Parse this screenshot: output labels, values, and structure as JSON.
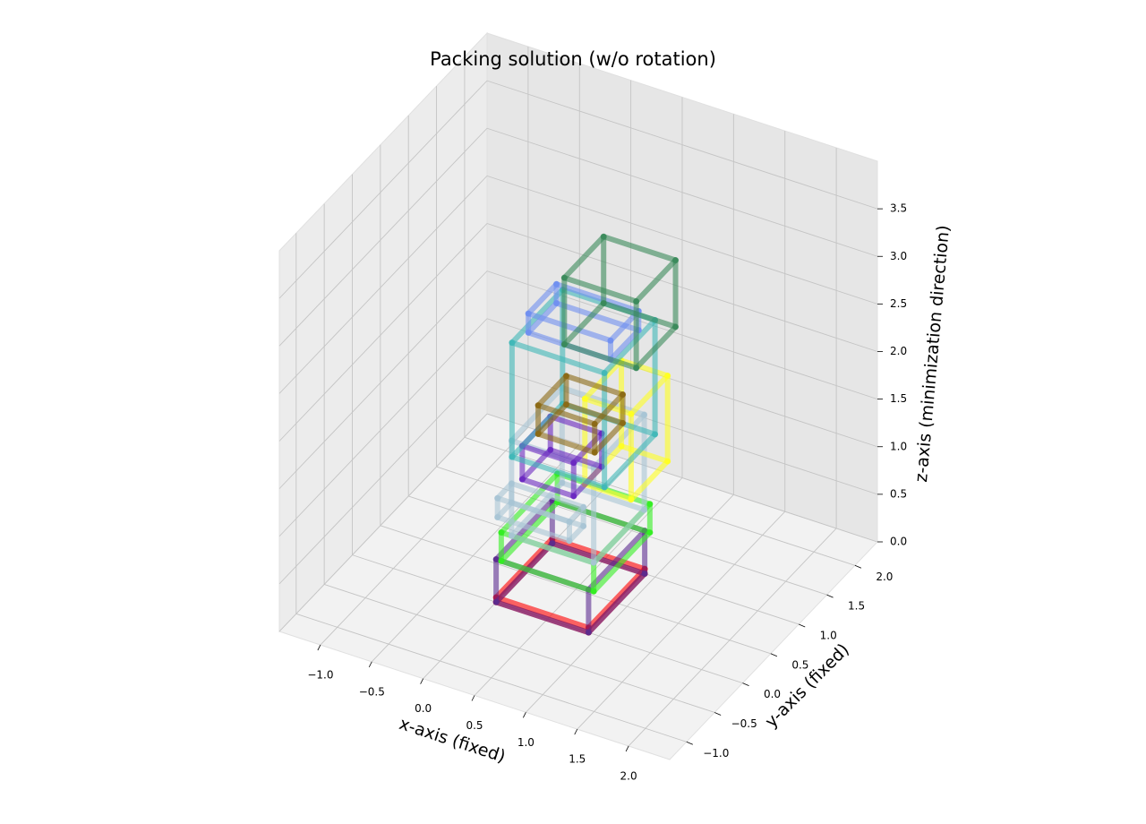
{
  "chart_data": {
    "type": "wireframe-3d",
    "title": "Packing solution (w/o rotation)",
    "x_label": "x-axis (fixed)",
    "y_label": "y-axis (fixed)",
    "z_label": "z-axis (minimization direction)",
    "xlim": [
      -1.4,
      2.4
    ],
    "ylim": [
      -1.3,
      2.4
    ],
    "zlim": [
      0,
      4.0
    ],
    "xticks": [
      {
        "value": -1.0,
        "label": "−1.0"
      },
      {
        "value": -0.5,
        "label": "−0.5"
      },
      {
        "value": 0,
        "label": "0.0"
      },
      0.5,
      {
        "value": 1,
        "label": "1.0"
      },
      1.5,
      {
        "value": 2,
        "label": "2.0"
      }
    ],
    "yticks": [
      {
        "value": -1.0,
        "label": "−1.0"
      },
      {
        "value": -0.5,
        "label": "−0.5"
      },
      {
        "value": 0,
        "label": "0.0"
      },
      0.5,
      {
        "value": 1,
        "label": "1.0"
      },
      1.5,
      {
        "value": 2,
        "label": "2.0"
      }
    ],
    "zticks": [
      {
        "value": 0,
        "label": "0.0"
      },
      0.5,
      {
        "value": 1,
        "label": "1.0"
      },
      1.5,
      {
        "value": 2,
        "label": "2.0"
      },
      2.5,
      {
        "value": 3,
        "label": "3.0"
      },
      3.5
    ],
    "grid": true,
    "boxes": [
      {
        "x": 0,
        "y": 0,
        "z": 0,
        "dx": 0.9,
        "dy": 1.0,
        "dz": 0.05,
        "color": "#ff0000"
      },
      {
        "x": 0,
        "y": 0,
        "z": 0,
        "dx": 0.9,
        "dy": 1.0,
        "dz": 0.45,
        "color": "#5b2c8f"
      },
      {
        "x": 0.05,
        "y": 0,
        "z": 0.45,
        "dx": 0.9,
        "dy": 1.0,
        "dz": 0.3,
        "color": "#33ee22"
      },
      {
        "x": 0.15,
        "y": 0,
        "z": 0.75,
        "dx": 0.8,
        "dy": 0.9,
        "dz": 1.0,
        "color": "#a8c4d4"
      },
      {
        "x": 0.15,
        "y": -0.25,
        "z": 1.1,
        "dx": 0.7,
        "dy": 0.25,
        "dz": 0.2,
        "color": "#a8c4d4"
      },
      {
        "x": 0.7,
        "y": 0.3,
        "z": 1.3,
        "dx": 0.45,
        "dy": 0.65,
        "dz": 0.9,
        "color": "#ffff22"
      },
      {
        "x": 0.2,
        "y": 0.1,
        "z": 1.3,
        "dx": 0.5,
        "dy": 0.5,
        "dz": 0.35,
        "color": "#6a28c0"
      },
      {
        "x": 0.1,
        "y": 0.1,
        "z": 1.5,
        "dx": 0.9,
        "dy": 0.9,
        "dz": 1.2,
        "color": "#40b8b8"
      },
      {
        "x": 0.3,
        "y": 0.2,
        "z": 1.75,
        "dx": 0.55,
        "dy": 0.5,
        "dz": 0.3,
        "color": "#8b6914"
      },
      {
        "x": 0.15,
        "y": 0.3,
        "z": 2.7,
        "dx": 0.8,
        "dy": 0.5,
        "dz": 0.2,
        "color": "#6f8ff0"
      },
      {
        "x": 0.5,
        "y": 0.3,
        "z": 2.7,
        "dx": 0.7,
        "dy": 0.7,
        "dz": 0.7,
        "color": "#3a8a5a"
      }
    ]
  }
}
